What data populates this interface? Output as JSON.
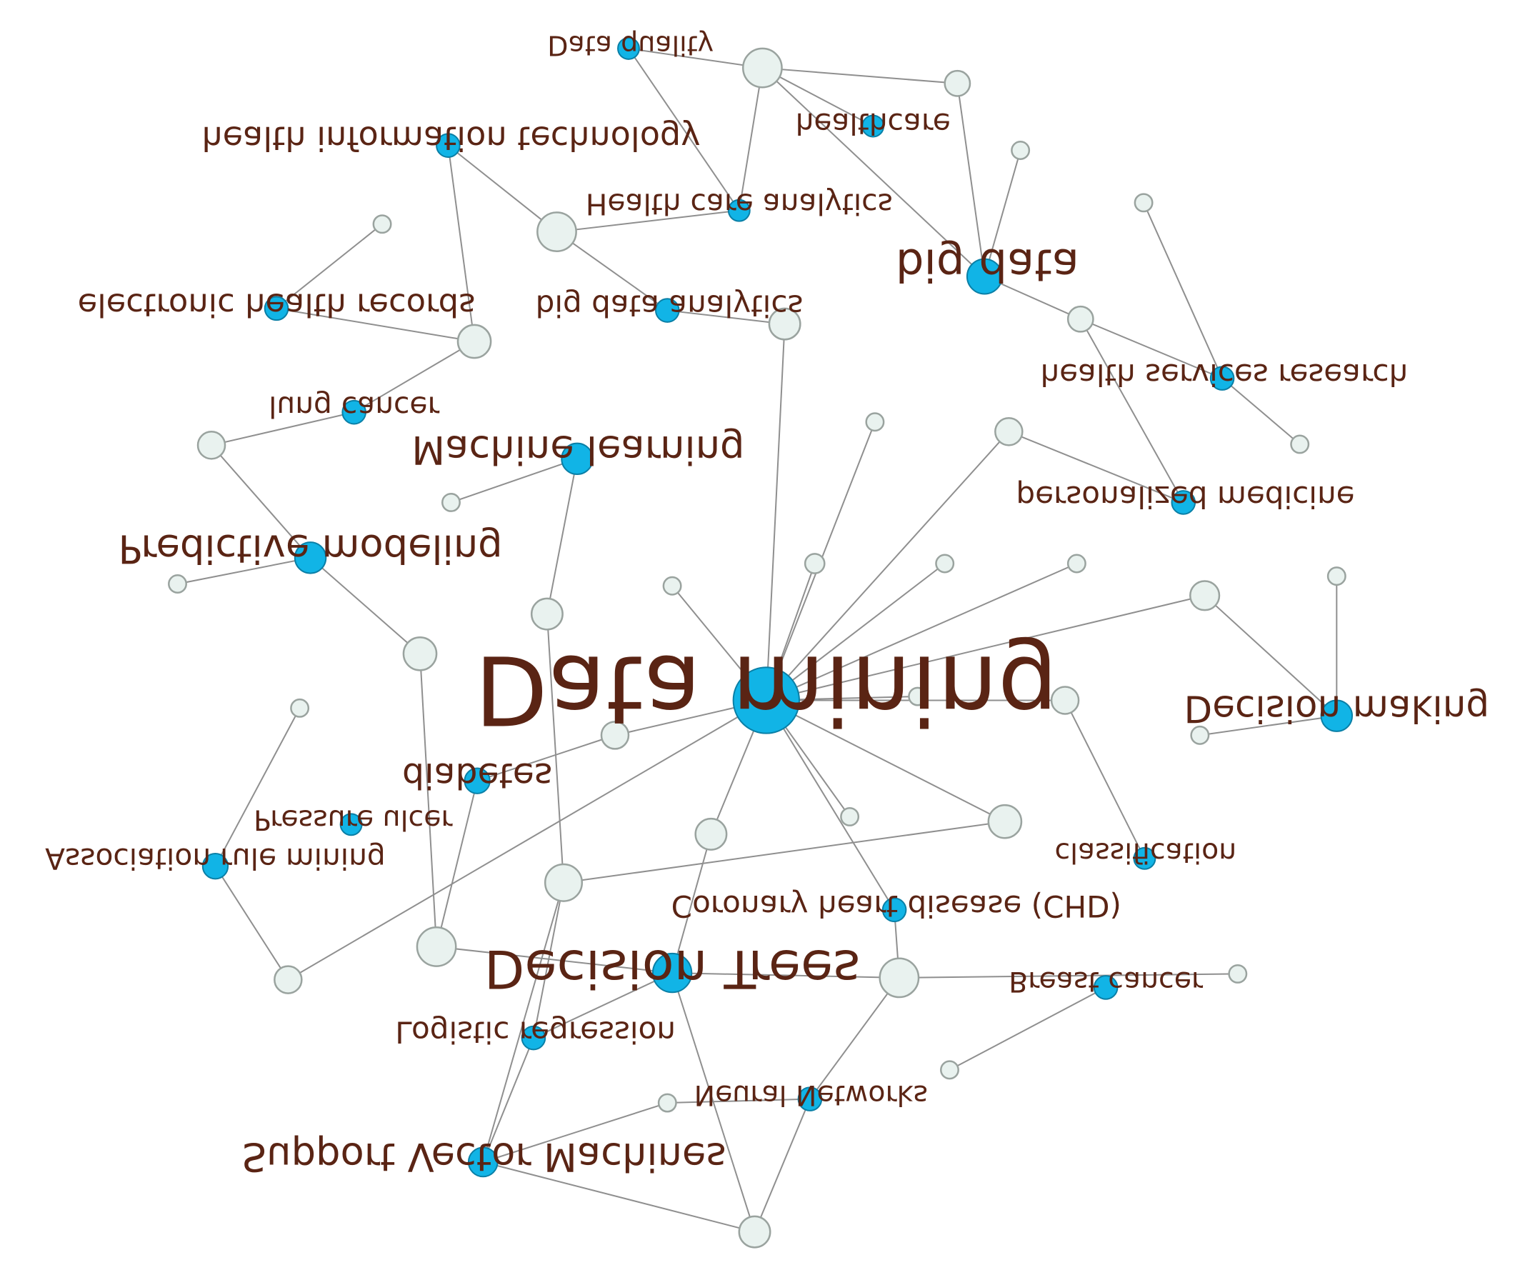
{
  "labels": {
    "data_quality": "Data quality",
    "health_information_technology": "health information technology",
    "healthcare": "healthcare",
    "health_care_analytics": "Health care analytics",
    "big_data": "big data",
    "electronic_health_records": "electronic health records",
    "big_data_analytics": "big data analytics",
    "health_services_research": "health services research",
    "lung_cancer": "lung cancer",
    "machine_learning": "Machine learning",
    "personalized_medicine": "personalized medicine",
    "predictive_modeling": "Predictive modeling",
    "data_mining": "Data mining",
    "decision_making": "Decision making",
    "diabetes": "diabetes",
    "pressure_ulcer": "Pressure ulcer",
    "association_rule_mining": "Association rule mining",
    "classification": "classification",
    "chd": "Coronary heart disease (CHD)",
    "decision_trees": "Decision Trees",
    "breast_cancer": "Breast cancer",
    "logistic_regression": "Logistic regression",
    "neural_networks": "Neural Networks",
    "svm": "Support Vector Machines"
  },
  "colors": {
    "keyword_node": "#11b4e6",
    "hub_node": "#e9f2ef",
    "edge": "#8f8f8f",
    "label_text": "#5a2414"
  }
}
